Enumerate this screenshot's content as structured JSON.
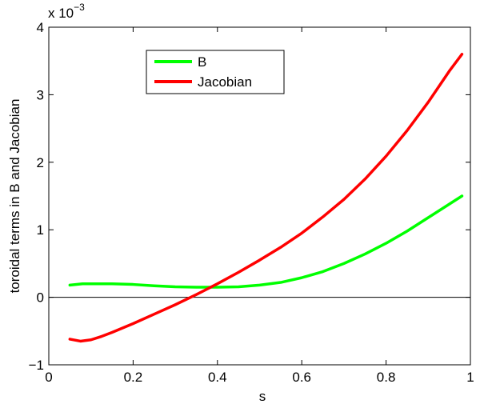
{
  "chart_data": {
    "type": "line",
    "title": "",
    "xlabel": "s",
    "ylabel": "toroidal terms in B and Jacobian",
    "xlim": [
      0,
      1
    ],
    "ylim": [
      -0.001,
      0.004
    ],
    "xticks": [
      0,
      0.2,
      0.4,
      0.6,
      0.8,
      1
    ],
    "xtick_labels": [
      "0",
      "0.2",
      "0.4",
      "0.6",
      "0.8",
      "1"
    ],
    "yticks": [
      -0.001,
      0,
      0.001,
      0.002,
      0.003,
      0.004
    ],
    "ytick_labels": [
      "−1",
      "0",
      "1",
      "2",
      "3",
      "4"
    ],
    "y_exponent_label": "x 10",
    "y_exponent_power": "−3",
    "grid": false,
    "zero_line": true,
    "legend_position": "top-center",
    "series": [
      {
        "name": "B",
        "color": "#00ff00",
        "x": [
          0.05,
          0.08,
          0.1,
          0.15,
          0.2,
          0.25,
          0.3,
          0.35,
          0.4,
          0.45,
          0.5,
          0.55,
          0.6,
          0.65,
          0.7,
          0.75,
          0.8,
          0.85,
          0.9,
          0.95,
          0.98
        ],
        "y": [
          0.00018,
          0.0002,
          0.0002,
          0.0002,
          0.00019,
          0.00017,
          0.000155,
          0.00015,
          0.00015,
          0.000155,
          0.00018,
          0.00022,
          0.00029,
          0.00038,
          0.0005,
          0.00064,
          0.0008,
          0.00098,
          0.00118,
          0.00138,
          0.0015
        ]
      },
      {
        "name": "Jacobian",
        "color": "#ff0000",
        "x": [
          0.05,
          0.075,
          0.1,
          0.125,
          0.15,
          0.2,
          0.25,
          0.3,
          0.35,
          0.4,
          0.45,
          0.5,
          0.55,
          0.6,
          0.65,
          0.7,
          0.75,
          0.8,
          0.85,
          0.9,
          0.95,
          0.98
        ],
        "y": [
          -0.00062,
          -0.00065,
          -0.00063,
          -0.00058,
          -0.00052,
          -0.00039,
          -0.00025,
          -0.00011,
          4e-05,
          0.0002,
          0.00037,
          0.00055,
          0.00074,
          0.00095,
          0.00119,
          0.00145,
          0.00175,
          0.00209,
          0.00247,
          0.00289,
          0.00335,
          0.0036
        ]
      }
    ]
  }
}
